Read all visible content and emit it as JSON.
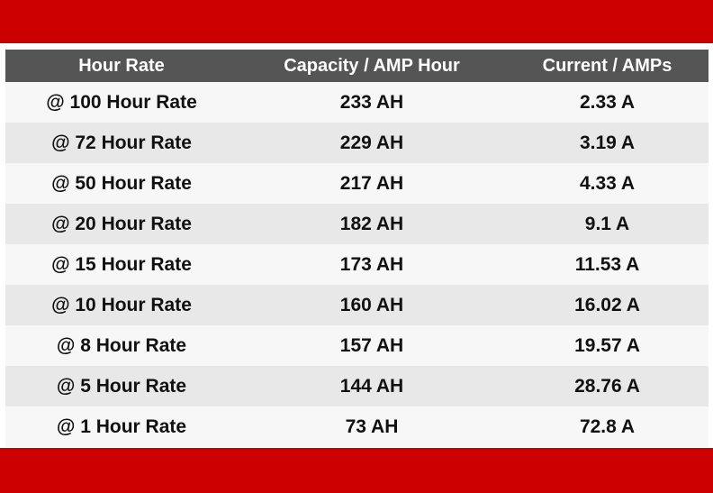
{
  "colors": {
    "band": "#cc0000",
    "header_bg": "#555555",
    "row_light": "#f7f7f7",
    "row_dark": "#e8e8e8"
  },
  "table": {
    "headers": [
      "Hour Rate",
      "Capacity / AMP Hour",
      "Current / AMPs"
    ],
    "rows": [
      [
        "@ 100 Hour Rate",
        "233 AH",
        "2.33 A"
      ],
      [
        "@ 72 Hour Rate",
        "229 AH",
        "3.19 A"
      ],
      [
        "@ 50 Hour Rate",
        "217 AH",
        "4.33 A"
      ],
      [
        "@ 20 Hour Rate",
        "182 AH",
        "9.1 A"
      ],
      [
        "@ 15 Hour Rate",
        "173 AH",
        "11.53 A"
      ],
      [
        "@ 10 Hour Rate",
        "160 AH",
        "16.02 A"
      ],
      [
        "@ 8 Hour Rate",
        "157 AH",
        "19.57 A"
      ],
      [
        "@ 5 Hour Rate",
        "144 AH",
        "28.76 A"
      ],
      [
        "@ 1 Hour Rate",
        "73 AH",
        "72.8 A"
      ]
    ]
  }
}
